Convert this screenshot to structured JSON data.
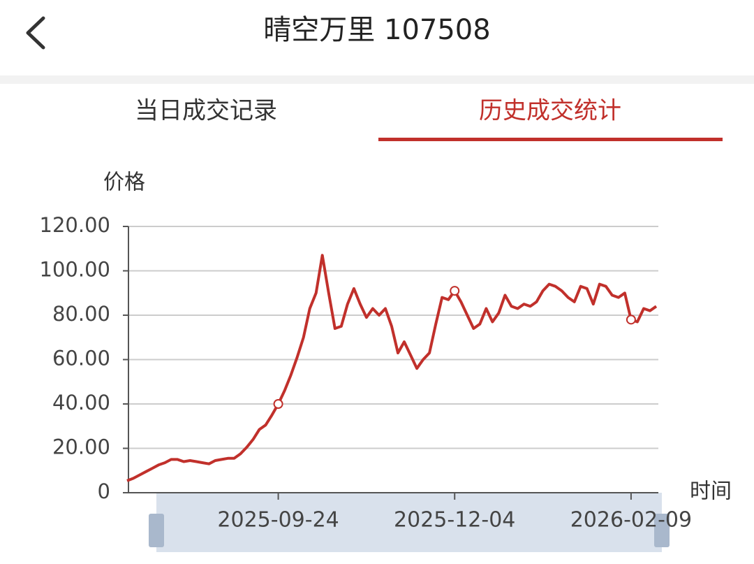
{
  "header": {
    "title": "晴空万里 107508"
  },
  "tabs": {
    "items": [
      "当日成交记录",
      "历史成交统计"
    ],
    "active": 1
  },
  "chart_data": {
    "type": "line",
    "y_label": "价格",
    "x_label": "时间",
    "categories": [
      null,
      null,
      null,
      null,
      null,
      null,
      null,
      null,
      null,
      null,
      null,
      null,
      null,
      null,
      null,
      null,
      null,
      null,
      null,
      null,
      null,
      null,
      null,
      null,
      "2025-09-24",
      null,
      null,
      null,
      null,
      null,
      null,
      null,
      null,
      null,
      null,
      null,
      null,
      null,
      null,
      null,
      null,
      null,
      null,
      null,
      null,
      null,
      null,
      null,
      null,
      null,
      null,
      null,
      "2025-12-04",
      null,
      null,
      null,
      null,
      null,
      null,
      null,
      null,
      null,
      null,
      null,
      null,
      null,
      null,
      null,
      null,
      null,
      null,
      null,
      null,
      null,
      null,
      null,
      null,
      null,
      null,
      null,
      "2026-02-09",
      null,
      null,
      null,
      null
    ],
    "series": [
      {
        "color": "#c1302b",
        "values": [
          5.4,
          6.5,
          8,
          9.5,
          11,
          12.5,
          13.5,
          15,
          15,
          14,
          14.5,
          14,
          13.5,
          13,
          14.5,
          15,
          15.5,
          15.5,
          17.5,
          20.5,
          24,
          28.5,
          30.5,
          35,
          40,
          46,
          53,
          61,
          70,
          83,
          90,
          107,
          90,
          74,
          75,
          85,
          92,
          85,
          79,
          83,
          80,
          83,
          75,
          63,
          68,
          62,
          56,
          60,
          63,
          76,
          88,
          87,
          91,
          86,
          80,
          74,
          76,
          83,
          77,
          81,
          89,
          84,
          83,
          85,
          84,
          86,
          91,
          94,
          93,
          91,
          88,
          86,
          93,
          92,
          85,
          94,
          93,
          89,
          88,
          90,
          78,
          77,
          83,
          82,
          84
        ]
      }
    ],
    "ylim": [
      0,
      120
    ],
    "yticks": [
      0,
      {
        "value": 20,
        "label": "20.00"
      },
      {
        "value": 40,
        "label": "40.00"
      },
      {
        "value": 60,
        "label": "60.00"
      },
      {
        "value": 80,
        "label": "80.00"
      },
      {
        "value": 100,
        "label": "100.00"
      },
      {
        "value": 120,
        "label": "120.00"
      }
    ],
    "grid": true
  }
}
